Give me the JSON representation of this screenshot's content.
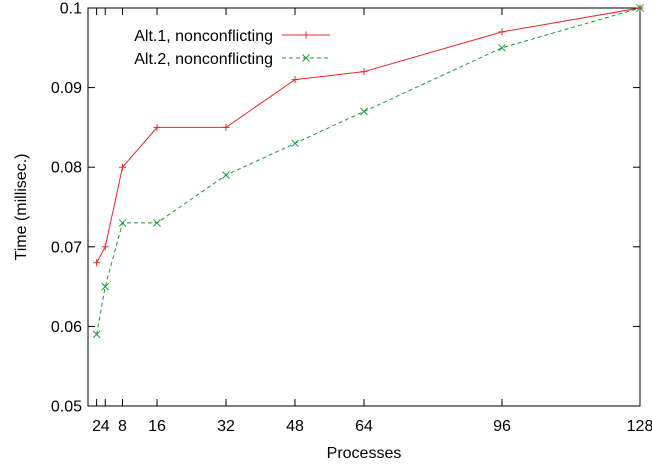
{
  "chart_data": {
    "type": "line",
    "x": [
      2,
      4,
      8,
      16,
      32,
      48,
      64,
      96,
      128
    ],
    "xticks": [
      2,
      4,
      8,
      16,
      32,
      48,
      64,
      96,
      128
    ],
    "xtick_labels": [
      "2",
      "4",
      "8",
      "16",
      "32",
      "48",
      "64",
      "96",
      "128"
    ],
    "yticks": [
      0.05,
      0.06,
      0.07,
      0.08,
      0.09,
      0.1
    ],
    "ytick_labels": [
      "0.05",
      "0.06",
      "0.07",
      "0.08",
      "0.09",
      "0.1"
    ],
    "xlim": [
      0,
      128
    ],
    "ylim": [
      0.05,
      0.1
    ],
    "xlabel": "Processes",
    "ylabel": "Time (millisec.)",
    "title": "",
    "legend_position": "top-left",
    "grid": false,
    "series": [
      {
        "name": "Alt.1, nonconflicting",
        "values": [
          0.068,
          0.07,
          0.08,
          0.085,
          0.085,
          0.091,
          0.092,
          0.097,
          0.1
        ],
        "color": "#e8282b",
        "marker": "plus",
        "line_style": "solid"
      },
      {
        "name": "Alt.2, nonconflicting",
        "values": [
          0.059,
          0.065,
          0.073,
          0.073,
          0.079,
          0.083,
          0.087,
          0.095,
          0.1
        ],
        "color": "#1a9a3a",
        "marker": "cross",
        "line_style": "dashed"
      }
    ]
  }
}
